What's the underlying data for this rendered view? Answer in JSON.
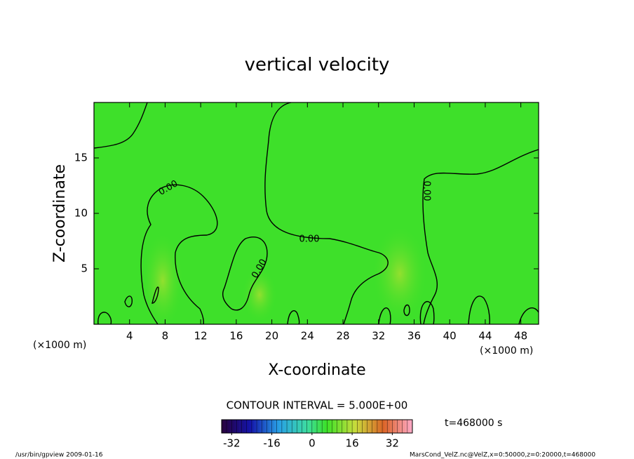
{
  "chart_data": {
    "type": "contour",
    "title": "vertical velocity",
    "xlabel": "X-coordinate",
    "ylabel": "Z-coordinate",
    "x_unit_label": "(×1000 m)",
    "xlim": [
      0,
      50
    ],
    "xticks": [
      4,
      8,
      12,
      16,
      20,
      24,
      28,
      32,
      36,
      40,
      44,
      48
    ],
    "ylim": [
      0,
      20
    ],
    "yticks": [
      5,
      10,
      15
    ],
    "contour_levels": [
      {
        "value": 0,
        "label": "0.00"
      }
    ],
    "contour_interval_label": "CONTOUR INTERVAL = 5.000E+00",
    "colorbar": {
      "lim": [
        -36,
        40
      ],
      "ticks": [
        -32,
        -16,
        0,
        16,
        32
      ]
    },
    "time_label": "t=468000 s",
    "footer_left": "/usr/bin/gpview  2009-01-16",
    "footer_right": "MarsCond_VelZ.nc@VelZ,x=0:50000,z=0:20000,t=468000"
  }
}
